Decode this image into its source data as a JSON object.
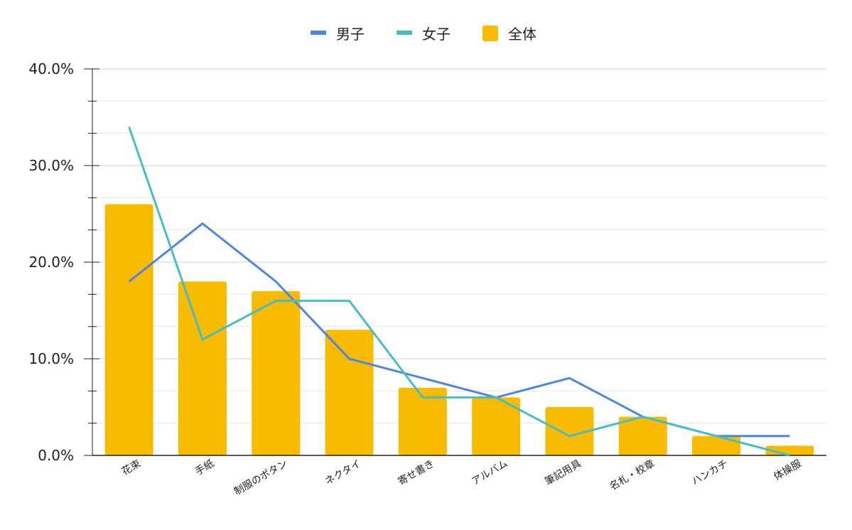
{
  "chart_data": {
    "type": "combo",
    "categories": [
      "花束",
      "手紙",
      "制服のボタン",
      "ネクタイ",
      "寄せ書き",
      "アルバム",
      "筆記用具",
      "名札・校章",
      "ハンカチ",
      "体操服"
    ],
    "series": [
      {
        "name": "男子",
        "type": "line",
        "color": "#4a86e8",
        "values": [
          18,
          24,
          18,
          10,
          8,
          6,
          8,
          4,
          2,
          2
        ]
      },
      {
        "name": "女子",
        "type": "line",
        "color": "#46bdc6",
        "values": [
          34,
          12,
          16,
          16,
          6,
          6,
          2,
          4,
          2,
          0
        ]
      },
      {
        "name": "全体",
        "type": "bar",
        "color": "#f9bb00",
        "values": [
          26,
          18,
          17,
          13,
          7,
          6,
          5,
          4,
          2,
          1
        ]
      }
    ],
    "ylim": [
      0,
      40
    ],
    "yticks": [
      {
        "value": 0,
        "label": "0.0%"
      },
      {
        "value": 10,
        "label": "10.0%"
      },
      {
        "value": 20,
        "label": "20.0%"
      },
      {
        "value": 30,
        "label": "30.0%"
      },
      {
        "value": 40,
        "label": "40.0%"
      }
    ],
    "minor_yticks": [
      3.333,
      6.667,
      13.333,
      16.667,
      23.333,
      26.667,
      33.333,
      36.667
    ],
    "grid": true,
    "legend": "top"
  }
}
